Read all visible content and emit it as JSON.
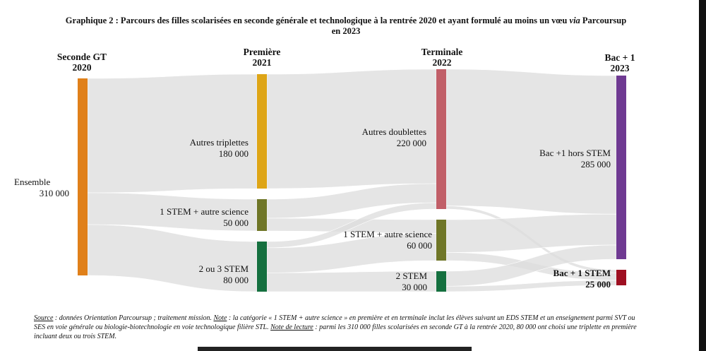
{
  "title_line1": "Graphique 2 : Parcours des filles scolarisées en seconde générale et technologique à la rentrée 2020 et ayant formulé au moins un vœu",
  "title_via": "via",
  "title_line1_end": "Parcoursup",
  "title_line2": "en 2023",
  "columns": [
    {
      "name": "Seconde GT",
      "year": "2020"
    },
    {
      "name": "Première",
      "year": "2021"
    },
    {
      "name": "Terminale",
      "year": "2022"
    },
    {
      "name": "Bac + 1",
      "year": "2023"
    }
  ],
  "chart_data": {
    "type": "sankey",
    "title": "Graphique 2 : Parcours des filles scolarisées en seconde générale et technologique à la rentrée 2020 et ayant formulé au moins un vœu via Parcoursup en 2023",
    "nodes": [
      {
        "id": "ensemble",
        "stage": "Seconde GT 2020",
        "label": "Ensemble",
        "value_label": "310 000",
        "value": 310000,
        "color": "#e0801a"
      },
      {
        "id": "autres_triplettes",
        "stage": "Première 2021",
        "label": "Autres triplettes",
        "value_label": "180 000",
        "value": 180000,
        "color": "#dea516"
      },
      {
        "id": "stem_autre_p",
        "stage": "Première 2021",
        "label": "1 STEM + autre science",
        "value_label": "50 000",
        "value": 50000,
        "color": "#6f7627"
      },
      {
        "id": "stem_2_3",
        "stage": "Première 2021",
        "label": "2 ou 3 STEM",
        "value_label": "80 000",
        "value": 80000,
        "color": "#15703f"
      },
      {
        "id": "autres_doublettes",
        "stage": "Terminale 2022",
        "label": "Autres doublettes",
        "value_label": "220 000",
        "value": 220000,
        "color": "#c15f68"
      },
      {
        "id": "stem_autre_t",
        "stage": "Terminale 2022",
        "label": "1 STEM + autre science",
        "value_label": "60 000",
        "value": 60000,
        "color": "#6f7627"
      },
      {
        "id": "stem_2",
        "stage": "Terminale 2022",
        "label": "2 STEM",
        "value_label": "30 000",
        "value": 30000,
        "color": "#15703f"
      },
      {
        "id": "bac1_hors",
        "stage": "Bac + 1 2023",
        "label": "Bac +1 hors STEM",
        "value_label": "285 000",
        "value": 285000,
        "color": "#6f3a92"
      },
      {
        "id": "bac1_stem",
        "stage": "Bac + 1 2023",
        "label": "Bac + 1 STEM",
        "value_label": "25 000",
        "value": 25000,
        "color": "#9e0f21"
      }
    ],
    "links": [
      {
        "source": "ensemble",
        "target": "autres_triplettes",
        "value": 180000
      },
      {
        "source": "ensemble",
        "target": "stem_autre_p",
        "value": 50000
      },
      {
        "source": "ensemble",
        "target": "stem_2_3",
        "value": 80000
      },
      {
        "source": "autres_triplettes",
        "target": "autres_doublettes",
        "value": 180000
      },
      {
        "source": "stem_autre_p",
        "target": "autres_doublettes",
        "value": 30000
      },
      {
        "source": "stem_autre_p",
        "target": "stem_autre_t",
        "value": 20000
      },
      {
        "source": "stem_2_3",
        "target": "autres_doublettes",
        "value": 10000
      },
      {
        "source": "stem_2_3",
        "target": "stem_autre_t",
        "value": 40000
      },
      {
        "source": "stem_2_3",
        "target": "stem_2",
        "value": 30000
      },
      {
        "source": "autres_doublettes",
        "target": "bac1_hors",
        "value": 215000
      },
      {
        "source": "autres_doublettes",
        "target": "bac1_stem",
        "value": 5000
      },
      {
        "source": "stem_autre_t",
        "target": "bac1_hors",
        "value": 48000
      },
      {
        "source": "stem_autre_t",
        "target": "bac1_stem",
        "value": 12000
      },
      {
        "source": "stem_2",
        "target": "bac1_hors",
        "value": 22000
      },
      {
        "source": "stem_2",
        "target": "bac1_stem",
        "value": 8000
      }
    ],
    "link_color": "#dcdcdc"
  },
  "note": {
    "source_label": "Source",
    "source_text": " : données Orientation Parcoursup ; traitement mission. ",
    "note_label": "Note",
    "note_text": " : la catégorie « 1 STEM + autre science » en première et en terminale inclut les élèves suivant un EDS STEM et un enseignement parmi SVT ou SES en voie générale ou biologie-biotechnologie en voie technologique filière STL. ",
    "lecture_label": "Note de lecture",
    "lecture_text": " : parmi les 310 000 filles scolarisées en seconde GT à la rentrée 2020, 80 000 ont choisi une triplette en première incluant deux ou trois STEM."
  }
}
